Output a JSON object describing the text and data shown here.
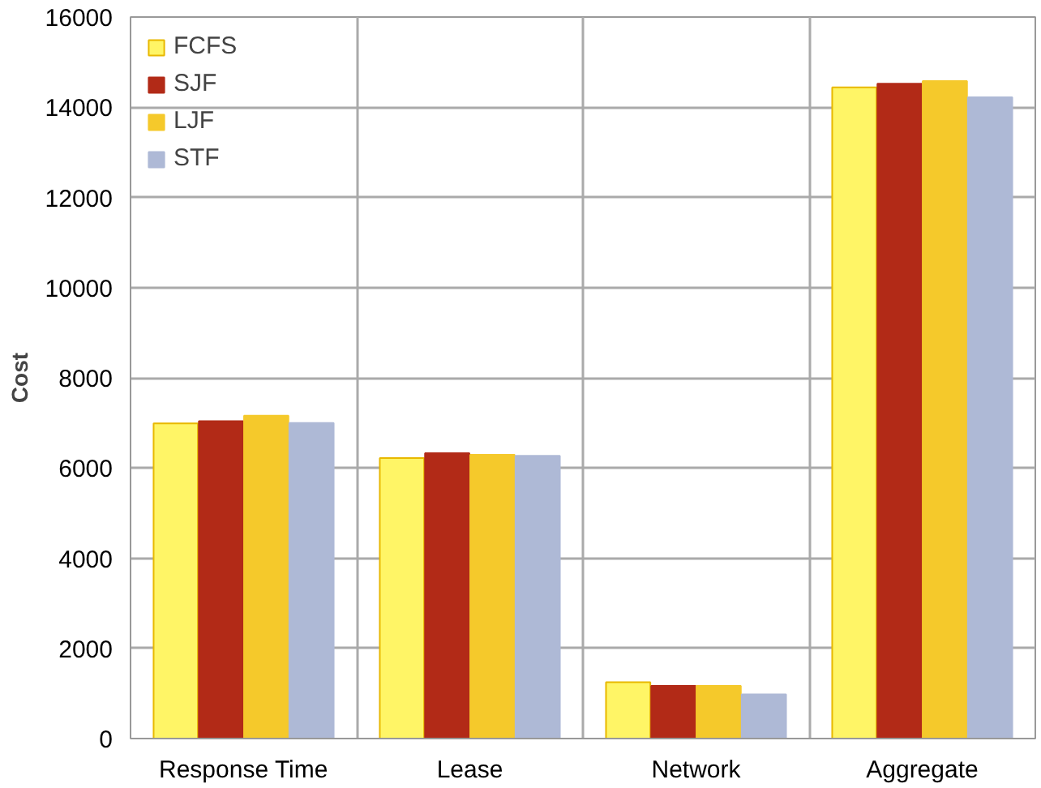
{
  "chart_data": {
    "type": "bar",
    "ylabel": "Cost",
    "categories": [
      "Response Time",
      "Lease",
      "Network",
      "Aggregate"
    ],
    "series": [
      {
        "name": "FCFS",
        "color": "#fff566",
        "values": [
          6990,
          6220,
          1250,
          14440
        ]
      },
      {
        "name": "SJF",
        "color": "#b22a17",
        "values": [
          7040,
          6330,
          1170,
          14520
        ]
      },
      {
        "name": "LJF",
        "color": "#f5c92b",
        "values": [
          7160,
          6290,
          1170,
          14580
        ]
      },
      {
        "name": "STF",
        "color": "#aeb9d6",
        "values": [
          7000,
          6270,
          980,
          14220
        ]
      }
    ],
    "ylim": [
      0,
      16000
    ],
    "yticks": [
      0,
      2000,
      4000,
      6000,
      8000,
      10000,
      12000,
      14000,
      16000
    ],
    "grid": true,
    "legend": "top left"
  }
}
